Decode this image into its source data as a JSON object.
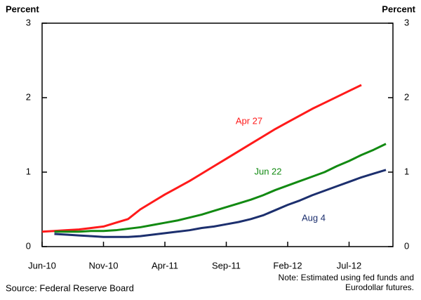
{
  "chart_data": {
    "type": "line",
    "y_label": "Percent",
    "y2_label": "Percent",
    "source": "Source: Federal Reserve Board",
    "note": "Note: Estimated using fed funds and Eurodollar futures.",
    "categories": [
      "Jun-10",
      null,
      null,
      null,
      null,
      "Nov-10",
      null,
      null,
      null,
      null,
      "Apr-11",
      null,
      null,
      null,
      null,
      "Sep-11",
      null,
      null,
      null,
      null,
      "Feb-12",
      null,
      null,
      null,
      null,
      "Jul-12",
      null,
      null,
      null
    ],
    "series": [
      {
        "name": "Apr 27",
        "color": "#ff1a1a",
        "values": [
          0.2,
          0.21,
          0.22,
          0.23,
          0.25,
          0.27,
          0.32,
          0.37,
          0.5,
          0.6,
          0.7,
          0.79,
          0.88,
          0.98,
          1.08,
          1.18,
          1.28,
          1.38,
          1.48,
          1.58,
          1.67,
          1.76,
          1.85,
          1.93,
          2.01,
          2.09,
          2.17,
          null,
          null
        ]
      },
      {
        "name": "Jun 22",
        "color": "#128a12",
        "values": [
          null,
          0.2,
          0.2,
          0.2,
          0.21,
          0.21,
          0.22,
          0.24,
          0.26,
          0.29,
          0.32,
          0.35,
          0.39,
          0.43,
          0.48,
          0.53,
          0.58,
          0.63,
          0.69,
          0.76,
          0.82,
          0.88,
          0.94,
          1.0,
          1.08,
          1.15,
          1.23,
          1.3,
          1.38
        ]
      },
      {
        "name": "Aug 4",
        "color": "#1c2f6e",
        "values": [
          null,
          0.17,
          0.16,
          0.15,
          0.14,
          0.13,
          0.13,
          0.13,
          0.14,
          0.16,
          0.18,
          0.2,
          0.22,
          0.25,
          0.27,
          0.3,
          0.33,
          0.37,
          0.42,
          0.49,
          0.56,
          0.62,
          0.69,
          0.75,
          0.81,
          0.87,
          0.93,
          0.98,
          1.03
        ]
      }
    ],
    "ylim": [
      0,
      3
    ],
    "yticks": [
      0,
      1,
      2,
      3
    ],
    "y2lim": [
      0,
      3
    ],
    "y2ticks": [
      0,
      1,
      2,
      3
    ]
  }
}
